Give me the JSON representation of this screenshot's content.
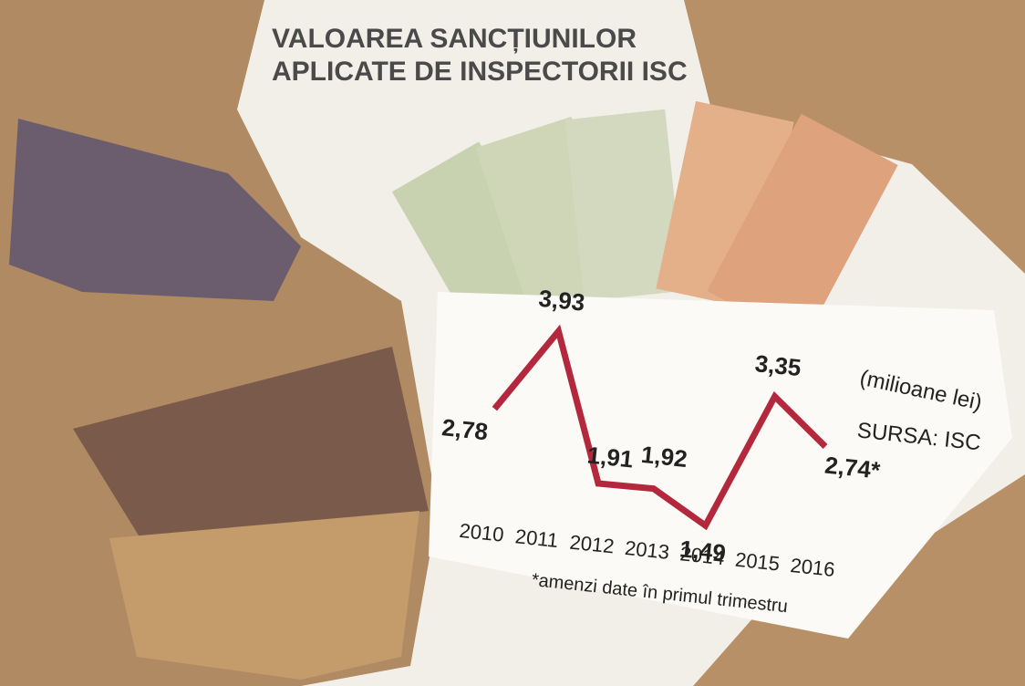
{
  "chart_data": {
    "type": "line",
    "title": [
      "VALOAREA SANCȚIUNILOR",
      "APLICATE DE INSPECTORII ISC"
    ],
    "unit": "(milioane lei)",
    "source": "SURSA: ISC",
    "note": "*amenzi date în primul trimestru",
    "categories": [
      "2010",
      "2011",
      "2012",
      "2013",
      "2014",
      "2015",
      "2016"
    ],
    "series": [
      {
        "color": "#b3283c",
        "values": [
          2.78,
          3.93,
          1.91,
          1.92,
          1.49,
          3.35,
          2.74
        ],
        "value_labels": [
          "2,78",
          "3,93",
          "1,91",
          "1,92",
          "1,49",
          "3,35",
          "2,74*"
        ]
      }
    ]
  }
}
